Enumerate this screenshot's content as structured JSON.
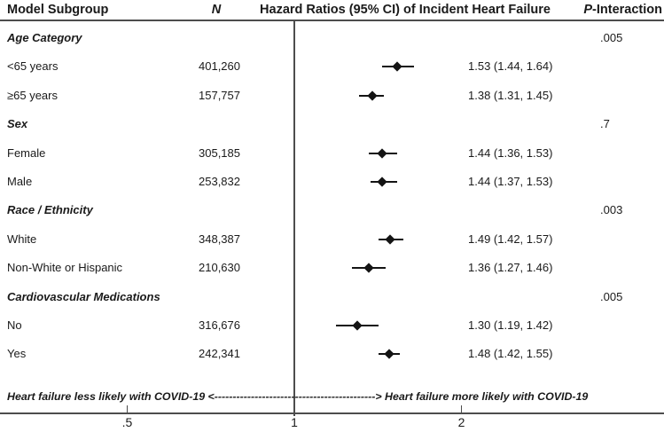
{
  "header": {
    "col_subgroup": "Model Subgroup",
    "col_n": "N",
    "col_hr": "Hazard Ratios (95% CI) of Incident Heart Failure",
    "col_p_italic": "P",
    "col_p_rest": "-Interaction"
  },
  "chart_data": {
    "type": "forest",
    "title": "Hazard Ratios (95% CI) of Incident Heart Failure",
    "x_axis": {
      "scale": "log",
      "tick_labels": [
        ".5",
        "1",
        "2"
      ],
      "tick_values": [
        0.5,
        1,
        2
      ],
      "reference_line": 1,
      "range": [
        0.35,
        2.4
      ]
    },
    "rows": [
      {
        "kind": "group",
        "label": "Age Category",
        "p_interaction": ".005"
      },
      {
        "kind": "item",
        "label": "<65 years",
        "n": "401,260",
        "hr": 1.53,
        "ci_low": 1.44,
        "ci_high": 1.64,
        "hr_text": "1.53 (1.44, 1.64)"
      },
      {
        "kind": "item",
        "label": "≥65 years",
        "n": "157,757",
        "hr": 1.38,
        "ci_low": 1.31,
        "ci_high": 1.45,
        "hr_text": "1.38 (1.31, 1.45)"
      },
      {
        "kind": "group",
        "label": "Sex",
        "p_interaction": ".7"
      },
      {
        "kind": "item",
        "label": "Female",
        "n": "305,185",
        "hr": 1.44,
        "ci_low": 1.36,
        "ci_high": 1.53,
        "hr_text": "1.44 (1.36, 1.53)"
      },
      {
        "kind": "item",
        "label": "Male",
        "n": "253,832",
        "hr": 1.44,
        "ci_low": 1.37,
        "ci_high": 1.53,
        "hr_text": "1.44 (1.37, 1.53)"
      },
      {
        "kind": "group",
        "label": "Race / Ethnicity",
        "p_interaction": ".003"
      },
      {
        "kind": "item",
        "label": "White",
        "n": "348,387",
        "hr": 1.49,
        "ci_low": 1.42,
        "ci_high": 1.57,
        "hr_text": "1.49 (1.42, 1.57)"
      },
      {
        "kind": "item",
        "label": "Non-White or Hispanic",
        "n": "210,630",
        "hr": 1.36,
        "ci_low": 1.27,
        "ci_high": 1.46,
        "hr_text": "1.36 (1.27, 1.46)"
      },
      {
        "kind": "group",
        "label": "Cardiovascular Medications",
        "p_interaction": ".005"
      },
      {
        "kind": "item",
        "label": "No",
        "n": "316,676",
        "hr": 1.3,
        "ci_low": 1.19,
        "ci_high": 1.42,
        "hr_text": "1.30 (1.19, 1.42)"
      },
      {
        "kind": "item",
        "label": "Yes",
        "n": "242,341",
        "hr": 1.48,
        "ci_low": 1.42,
        "ci_high": 1.55,
        "hr_text": "1.48 (1.42, 1.55)"
      }
    ],
    "footer_note": "Heart failure less likely with COVID-19 <--------------------------------------------> Heart failure more likely with COVID-19"
  },
  "colors": {
    "text": "#1a1a1a",
    "rule": "#4d4d4d",
    "marker": "#141414"
  }
}
